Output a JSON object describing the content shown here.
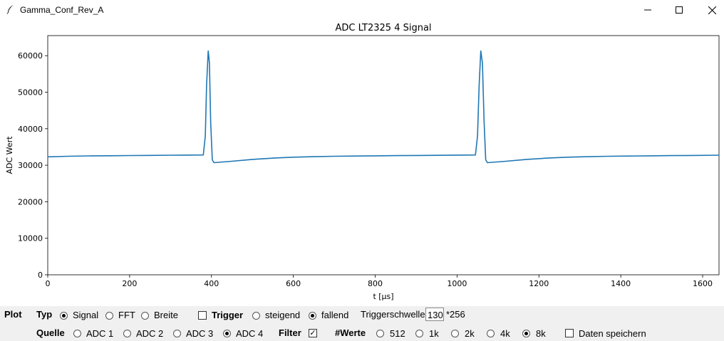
{
  "window": {
    "title": "Gamma_Conf_Rev_A",
    "controls": [
      "minimize-icon",
      "maximize-icon",
      "close-icon"
    ]
  },
  "chart_data": {
    "type": "line",
    "title": "ADC LT2325 4 Signal",
    "xlabel": "t [μs]",
    "ylabel": "ADC Wert",
    "xlim": [
      0,
      1640
    ],
    "ylim": [
      0,
      65500
    ],
    "xticks": [
      "0",
      "200",
      "400",
      "600",
      "800",
      "1000",
      "1200",
      "1400",
      "1600"
    ],
    "yticks": [
      "0",
      "10000",
      "20000",
      "30000",
      "40000",
      "50000",
      "60000"
    ],
    "grid": false,
    "color": "#1f77b4",
    "series": [
      {
        "x": [
          0,
          50,
          100,
          150,
          200,
          250,
          300,
          350,
          380,
          385,
          388,
          392,
          395,
          398,
          402,
          406,
          450,
          500,
          550,
          600,
          650,
          700,
          750,
          800,
          850,
          900,
          950,
          1000,
          1045,
          1050,
          1054,
          1058,
          1062,
          1066,
          1070,
          1074,
          1120,
          1170,
          1220,
          1270,
          1320,
          1370,
          1420,
          1470,
          1520,
          1570,
          1640
        ],
        "y": [
          32300,
          32450,
          32550,
          32600,
          32650,
          32700,
          32750,
          32780,
          32800,
          38000,
          52000,
          61300,
          58000,
          42000,
          31500,
          30700,
          31100,
          31600,
          31950,
          32200,
          32350,
          32450,
          32520,
          32580,
          32630,
          32680,
          32720,
          32760,
          32800,
          38000,
          52000,
          61300,
          58000,
          42000,
          31500,
          30700,
          31100,
          31600,
          31950,
          32200,
          32350,
          32450,
          32520,
          32580,
          32630,
          32680,
          32750
        ]
      }
    ]
  },
  "controls": {
    "plot_label": "Plot",
    "typ_label": "Typ",
    "typ_options": [
      {
        "label": "Signal",
        "selected": true
      },
      {
        "label": "FFT",
        "selected": false
      },
      {
        "label": "Breite",
        "selected": false
      }
    ],
    "trigger": {
      "label": "Trigger",
      "checked": false
    },
    "trigger_options": [
      {
        "label": "steigend",
        "selected": false
      },
      {
        "label": "fallend",
        "selected": true
      }
    ],
    "threshold_label": "Triggerschwelle",
    "threshold_value": "130",
    "threshold_unit": "*256",
    "quelle_label": "Quelle",
    "quelle_options": [
      {
        "label": "ADC 1",
        "selected": false
      },
      {
        "label": "ADC 2",
        "selected": false
      },
      {
        "label": "ADC 3",
        "selected": false
      },
      {
        "label": "ADC 4",
        "selected": true
      }
    ],
    "filter": {
      "label": "Filter",
      "checked": true
    },
    "werte_label": "#Werte",
    "werte_options": [
      {
        "label": "512",
        "selected": false
      },
      {
        "label": "1k",
        "selected": false
      },
      {
        "label": "2k",
        "selected": false
      },
      {
        "label": "4k",
        "selected": false
      },
      {
        "label": "8k",
        "selected": true
      }
    ],
    "save": {
      "label": "Daten speichern",
      "checked": false
    }
  }
}
